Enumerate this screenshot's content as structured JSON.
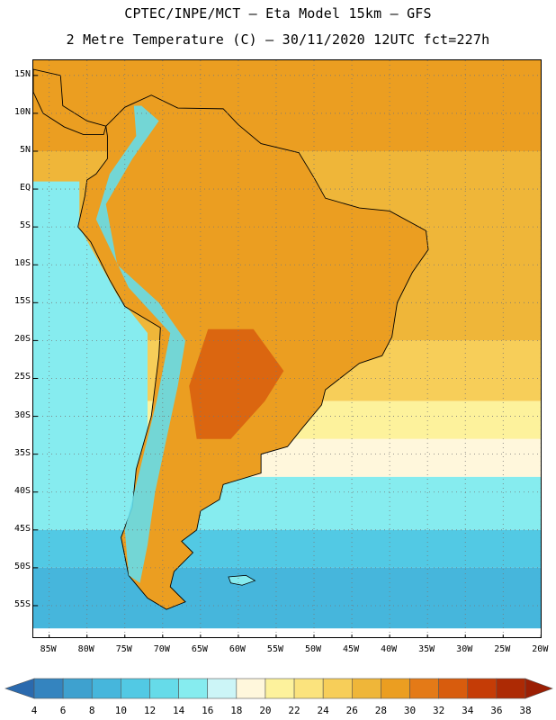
{
  "header": {
    "line1": "CPTEC/INPE/MCT –  Eta Model 15km – GFS",
    "line2": "2 Metre Temperature (C) – 30/11/2020 12UTC fct=227h"
  },
  "map": {
    "lat_ticks": [
      {
        "label": "15N",
        "lat": 15
      },
      {
        "label": "10N",
        "lat": 10
      },
      {
        "label": "5N",
        "lat": 5
      },
      {
        "label": "EQ",
        "lat": 0
      },
      {
        "label": "5S",
        "lat": -5
      },
      {
        "label": "10S",
        "lat": -10
      },
      {
        "label": "15S",
        "lat": -15
      },
      {
        "label": "20S",
        "lat": -20
      },
      {
        "label": "25S",
        "lat": -25
      },
      {
        "label": "30S",
        "lat": -30
      },
      {
        "label": "35S",
        "lat": -35
      },
      {
        "label": "40S",
        "lat": -40
      },
      {
        "label": "45S",
        "lat": -45
      },
      {
        "label": "50S",
        "lat": -50
      },
      {
        "label": "55S",
        "lat": -55
      }
    ],
    "lon_ticks": [
      {
        "label": "85W",
        "lon": -85
      },
      {
        "label": "80W",
        "lon": -80
      },
      {
        "label": "75W",
        "lon": -75
      },
      {
        "label": "70W",
        "lon": -70
      },
      {
        "label": "65W",
        "lon": -65
      },
      {
        "label": "60W",
        "lon": -60
      },
      {
        "label": "55W",
        "lon": -55
      },
      {
        "label": "50W",
        "lon": -50
      },
      {
        "label": "45W",
        "lon": -45
      },
      {
        "label": "40W",
        "lon": -40
      },
      {
        "label": "35W",
        "lon": -35
      },
      {
        "label": "30W",
        "lon": -30
      },
      {
        "label": "25W",
        "lon": -25
      },
      {
        "label": "20W",
        "lon": -20
      }
    ],
    "ocean_bands_c": [
      {
        "from_lat": 17,
        "to_lat": 5,
        "temp": 28
      },
      {
        "from_lat": 5,
        "to_lat": -20,
        "temp": 26
      },
      {
        "from_lat": -20,
        "to_lat": -28,
        "temp": 24
      },
      {
        "from_lat": -28,
        "to_lat": -33,
        "temp": 20
      },
      {
        "from_lat": -33,
        "to_lat": -38,
        "temp": 18
      },
      {
        "from_lat": -38,
        "to_lat": -45,
        "temp": 14
      },
      {
        "from_lat": -45,
        "to_lat": -50,
        "temp": 10
      },
      {
        "from_lat": -50,
        "to_lat": -58,
        "temp": 8
      }
    ],
    "pacific_temp_c": 14,
    "continent_temp_c": 28,
    "andes_temp_c": 12,
    "chaco_temp_c": 32
  },
  "colorbar": {
    "labels": [
      "4",
      "6",
      "8",
      "10",
      "12",
      "14",
      "16",
      "18",
      "20",
      "22",
      "24",
      "26",
      "28",
      "30",
      "32",
      "34",
      "36",
      "38"
    ],
    "colors": [
      "#2b6aae",
      "#3484bf",
      "#3ea1cf",
      "#46b6dc",
      "#52c9e4",
      "#66dbe9",
      "#86ecef",
      "#ccf5f7",
      "#fff7dc",
      "#fdf29c",
      "#fbe37d",
      "#f7ce59",
      "#efb639",
      "#eb9e21",
      "#e47a17",
      "#d85c0d",
      "#c53c06",
      "#ad2a04",
      "#9b1f04"
    ]
  }
}
